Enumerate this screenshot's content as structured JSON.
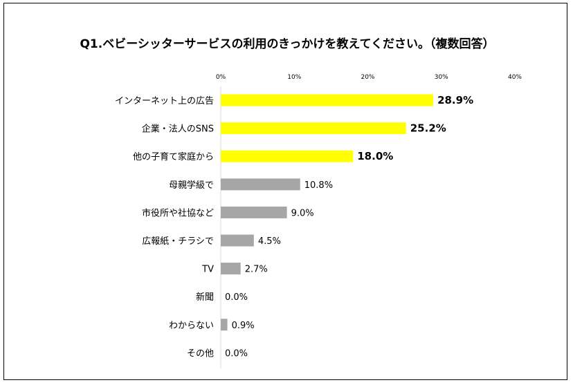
{
  "chart_data": {
    "type": "bar",
    "orientation": "horizontal",
    "title": "Q1.ベビーシッターサービスの利用のきっかけを教えてください。（複数回答）",
    "xlabel": "",
    "ylabel": "",
    "xlim": [
      0,
      40
    ],
    "ticks": [
      "0%",
      "10%",
      "20%",
      "30%",
      "40%"
    ],
    "tick_values": [
      0,
      10,
      20,
      30,
      40
    ],
    "grid": false,
    "legend": "none",
    "highlight_color": "#ffff00",
    "base_color": "#a6a6a6",
    "categories": [
      "インターネット上の広告",
      "企業・法人のSNS",
      "他の子育て家庭から",
      "母親学級で",
      "市役所や社協など",
      "広報紙・チラシで",
      "TV",
      "新聞",
      "わからない",
      "その他"
    ],
    "values": [
      28.9,
      25.2,
      18.0,
      10.8,
      9.0,
      4.5,
      2.7,
      0.0,
      0.9,
      0.0
    ],
    "labels": [
      "28.9%",
      "25.2%",
      "18.0%",
      "10.8%",
      "9.0%",
      "4.5%",
      "2.7%",
      "0.0%",
      "0.9%",
      "0.0%"
    ],
    "highlighted": [
      true,
      true,
      true,
      false,
      false,
      false,
      false,
      false,
      false,
      false
    ]
  }
}
